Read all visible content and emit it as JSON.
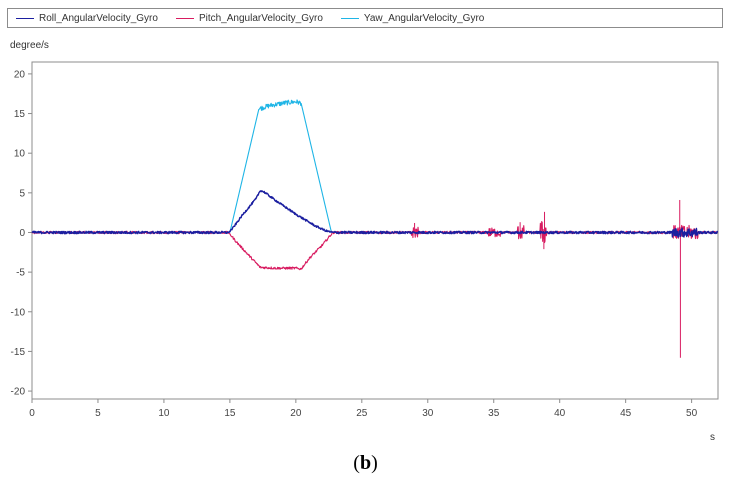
{
  "legend": {
    "roll": "Roll_AngularVelocity_Gyro",
    "pitch": "Pitch_AngularVelocity_Gyro",
    "yaw": "Yaw_AngularVelocity_Gyro"
  },
  "caption": {
    "open": "(",
    "letter": "b",
    "close": ")"
  },
  "colors": {
    "roll": "#1b1fa0",
    "pitch": "#d81b60",
    "yaw": "#1fb5e6"
  },
  "chart_data": {
    "type": "line",
    "title": "",
    "xlabel": "s",
    "ylabel": "degree/s",
    "xlim": [
      0,
      52
    ],
    "ylim": [
      -21,
      21.5
    ],
    "xticks": [
      0,
      5,
      10,
      15,
      20,
      25,
      30,
      35,
      40,
      45,
      50
    ],
    "yticks": [
      20,
      15,
      10,
      5,
      0,
      -5,
      -10,
      -15,
      -20
    ],
    "grid": false,
    "legend_position": "top",
    "series": [
      {
        "name": "Roll_AngularVelocity_Gyro",
        "color": "#1b1fa0",
        "points": [
          [
            0,
            0
          ],
          [
            14.9,
            0
          ],
          [
            15.2,
            0.5
          ],
          [
            16,
            2.3
          ],
          [
            17,
            4.3
          ],
          [
            17.3,
            5.3
          ],
          [
            17.6,
            5.1
          ],
          [
            18.5,
            4.0
          ],
          [
            20,
            2.3
          ],
          [
            21.5,
            0.8
          ],
          [
            22.3,
            0.2
          ],
          [
            22.8,
            0
          ],
          [
            52,
            0
          ]
        ],
        "noise": [
          [
            0,
            14.9,
            0.15
          ],
          [
            15,
            22.8,
            0.12
          ],
          [
            22.8,
            52,
            0.15
          ],
          [
            48.5,
            50.5,
            0.6
          ]
        ]
      },
      {
        "name": "Pitch_AngularVelocity_Gyro",
        "color": "#d81b60",
        "points": [
          [
            0,
            0
          ],
          [
            14.9,
            0
          ],
          [
            15.5,
            -1.2
          ],
          [
            16.5,
            -3.0
          ],
          [
            17.3,
            -4.4
          ],
          [
            18.5,
            -4.5
          ],
          [
            20,
            -4.5
          ],
          [
            20.4,
            -4.6
          ],
          [
            21,
            -3.3
          ],
          [
            22,
            -1.6
          ],
          [
            22.8,
            0
          ],
          [
            52,
            0
          ]
        ],
        "noise": [
          [
            0,
            14.9,
            0.15
          ],
          [
            15,
            22.8,
            0.15
          ],
          [
            22.8,
            52,
            0.15
          ],
          [
            28.7,
            29.3,
            0.7
          ],
          [
            34.5,
            35.5,
            0.6
          ],
          [
            36.8,
            37.3,
            0.9
          ],
          [
            38.5,
            39.0,
            1.5
          ],
          [
            48.6,
            50.5,
            0.9
          ]
        ],
        "spikes": [
          [
            49.15,
            -15.8
          ],
          [
            49.1,
            4.1
          ],
          [
            38.8,
            -2.1
          ],
          [
            38.85,
            2.6
          ],
          [
            29.0,
            1.2
          ],
          [
            37.0,
            1.3
          ]
        ]
      },
      {
        "name": "Yaw_AngularVelocity_Gyro",
        "color": "#1fb5e6",
        "points": [
          [
            0,
            0
          ],
          [
            15,
            0
          ],
          [
            17.2,
            15.6
          ],
          [
            18,
            16.0
          ],
          [
            19,
            16.3
          ],
          [
            20,
            16.5
          ],
          [
            20.4,
            16.3
          ],
          [
            22.7,
            0
          ],
          [
            52,
            0
          ]
        ],
        "noise": [
          [
            17.2,
            20.4,
            0.3
          ]
        ]
      }
    ]
  }
}
